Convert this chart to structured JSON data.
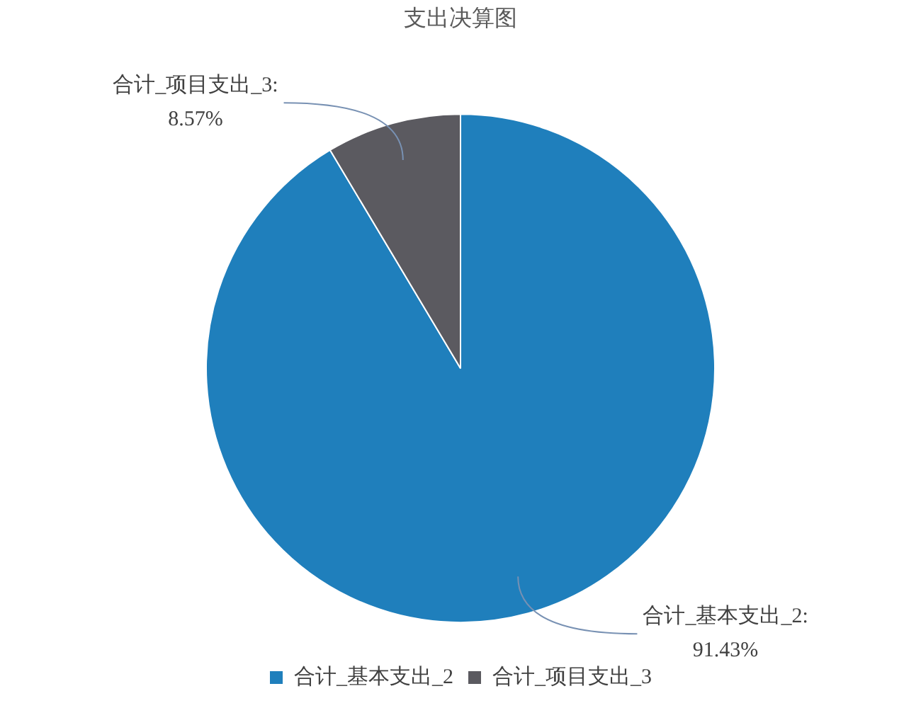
{
  "chart_data": {
    "type": "pie",
    "title": "支出决算图",
    "categories": [
      "合计_基本支出_2",
      "合计_项目支出_3"
    ],
    "values": [
      91.43,
      8.57
    ],
    "colors": [
      "#1f7fbc",
      "#5b5a60"
    ],
    "value_labels": [
      "合计_基本支出_2:\n91.43%",
      "合计_项目支出_3:\n8.57%"
    ],
    "legend": "bottom"
  }
}
